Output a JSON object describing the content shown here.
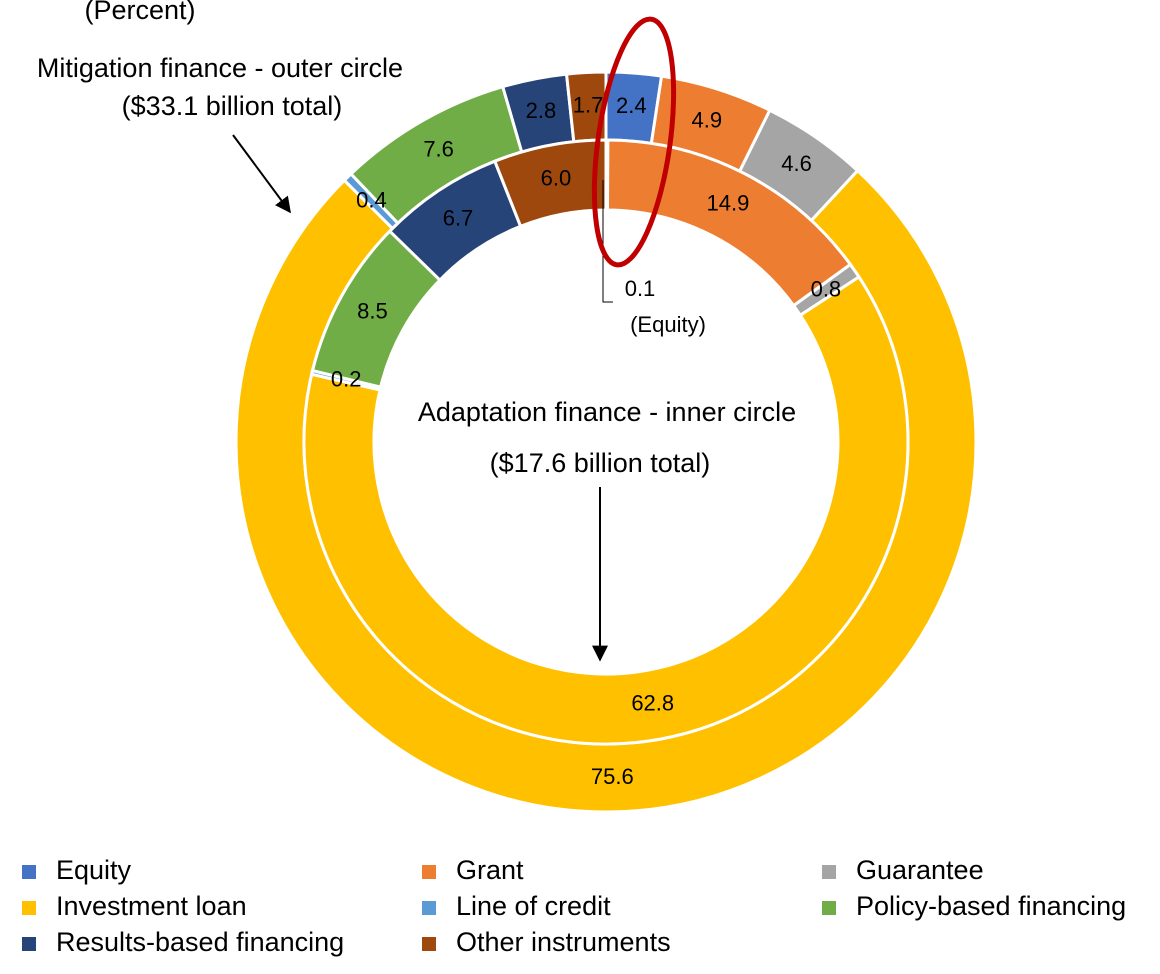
{
  "chart_data": {
    "type": "pie",
    "title": "(Percent)",
    "categories": [
      "Equity",
      "Grant",
      "Guarantee",
      "Investment loan",
      "Line of credit",
      "Policy-based financing",
      "Results-based financing",
      "Other instruments"
    ],
    "colors": [
      "#4472c4",
      "#ed7d31",
      "#a5a5a5",
      "#ffc000",
      "#5b9bd5",
      "#70ad47",
      "#264478",
      "#9e480e"
    ],
    "series": [
      {
        "name": "Mitigation finance - outer circle",
        "total_label": "($33.1 billion total)",
        "values": [
          2.4,
          4.9,
          4.6,
          75.6,
          0.4,
          7.6,
          2.8,
          1.7
        ],
        "value_labels": [
          "2.4",
          "4.9",
          "4.6",
          "75.6",
          "0.4",
          "7.6",
          "2.8",
          "1.7"
        ]
      },
      {
        "name": "Adaptation finance - inner circle",
        "total_label": "($17.6 billion total)",
        "values": [
          0.1,
          14.9,
          0.8,
          62.8,
          0.2,
          8.5,
          6.7,
          6.0
        ],
        "value_labels": [
          "0.1",
          "14.9",
          "0.8",
          "62.8",
          "0.2",
          "8.5",
          "6.7",
          "6.0"
        ]
      }
    ],
    "annotations": [
      "(Equity)"
    ],
    "legend": "bottom"
  }
}
